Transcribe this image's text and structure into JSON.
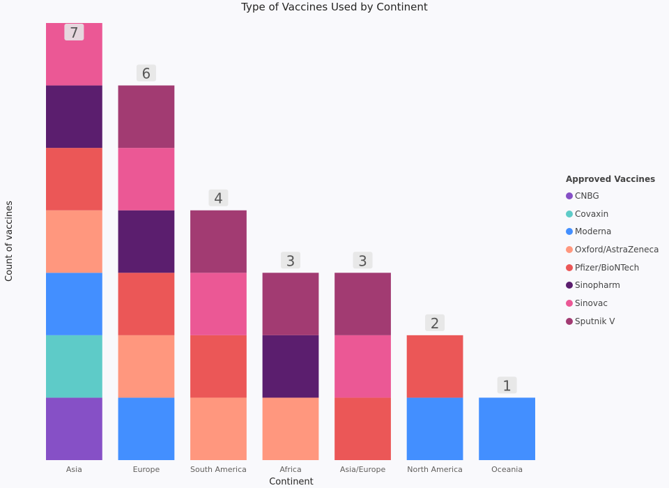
{
  "chart_data": {
    "type": "bar",
    "stacked": true,
    "title": "Type of Vaccines Used by Continent",
    "xlabel": "Continent",
    "ylabel": "Count of vaccines",
    "ylim": [
      0,
      7
    ],
    "grid": false,
    "legend_title": "Approved Vaccines",
    "legend_position": "right",
    "categories": [
      "Asia",
      "Europe",
      "South America",
      "Africa",
      "Asia/Europe",
      "North America",
      "Oceania"
    ],
    "totals": [
      7,
      6,
      4,
      3,
      3,
      2,
      1
    ],
    "series": [
      {
        "name": "CNBG",
        "color": "#8650c6",
        "values": [
          1,
          0,
          0,
          0,
          0,
          0,
          0
        ]
      },
      {
        "name": "Covaxin",
        "color": "#5ecbc8",
        "values": [
          1,
          0,
          0,
          0,
          0,
          0,
          0
        ]
      },
      {
        "name": "Moderna",
        "color": "#438fff",
        "values": [
          1,
          1,
          0,
          0,
          0,
          1,
          1
        ]
      },
      {
        "name": "Oxford/AstraZeneca",
        "color": "#ff977e",
        "values": [
          1,
          1,
          1,
          1,
          0,
          0,
          0
        ]
      },
      {
        "name": "Pfizer/BioNTech",
        "color": "#eb5757",
        "values": [
          1,
          1,
          1,
          0,
          1,
          1,
          0
        ]
      },
      {
        "name": "Sinopharm",
        "color": "#5b1e6e",
        "values": [
          1,
          1,
          0,
          1,
          0,
          0,
          0
        ]
      },
      {
        "name": "Sinovac",
        "color": "#eb5895",
        "values": [
          1,
          1,
          1,
          0,
          1,
          0,
          0
        ]
      },
      {
        "name": "Sputnik V",
        "color": "#a23b72",
        "values": [
          0,
          1,
          1,
          1,
          1,
          0,
          0
        ]
      }
    ]
  }
}
